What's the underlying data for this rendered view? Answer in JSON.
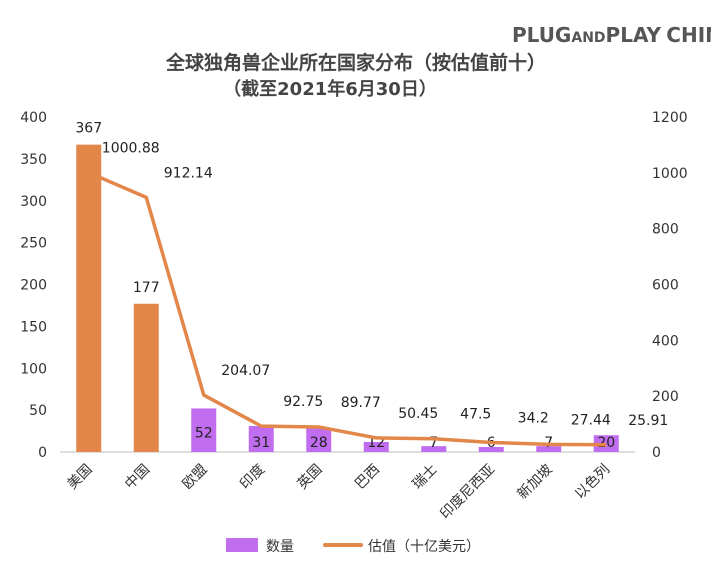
{
  "brand": {
    "part1": "PLUG",
    "part2": "AND",
    "part3": "PLAY",
    "part4": "CHINA"
  },
  "chart_data": {
    "type": "bar+line",
    "title": "全球独角兽企业所在国家分布（按估值前十）",
    "subtitle": "（截至2021年6月30日）",
    "categories": [
      "美国",
      "中国",
      "欧盟",
      "印度",
      "英国",
      "巴西",
      "瑞士",
      "印度尼西亚",
      "新加坡",
      "以色列"
    ],
    "series": [
      {
        "name": "数量",
        "type": "bar",
        "axis": "left",
        "values": [
          367,
          177,
          52,
          31,
          28,
          12,
          7,
          6,
          7,
          20
        ],
        "labels": [
          "367",
          "177",
          "52",
          "31",
          "28",
          "12",
          "7",
          "6",
          "7",
          "20"
        ]
      },
      {
        "name": "估值（十亿美元）",
        "type": "line",
        "axis": "right",
        "values": [
          1000.88,
          912.14,
          204.07,
          92.75,
          89.77,
          50.45,
          47.5,
          34.2,
          27.44,
          25.91
        ],
        "labels": [
          "1000.88",
          "912.14",
          "204.07",
          "92.75",
          "89.77",
          "50.45",
          "47.5",
          "34.2",
          "27.44",
          "25.91"
        ]
      }
    ],
    "y_left": {
      "min": 0,
      "max": 400,
      "ticks": [
        "0",
        "50",
        "100",
        "150",
        "200",
        "250",
        "300",
        "350",
        "400"
      ]
    },
    "y_right": {
      "min": 0,
      "max": 1200,
      "ticks": [
        "0",
        "200",
        "400",
        "600",
        "800",
        "1000",
        "1200"
      ]
    },
    "legend_position": "bottom",
    "grid": false,
    "colors": {
      "bar_default": "#C06DEF",
      "bar_highlight": "#E2864A",
      "line": "#E2864A",
      "text": "#333333",
      "title": "#444444",
      "brand": "#555555"
    },
    "highlight_bars": [
      0,
      1
    ]
  }
}
